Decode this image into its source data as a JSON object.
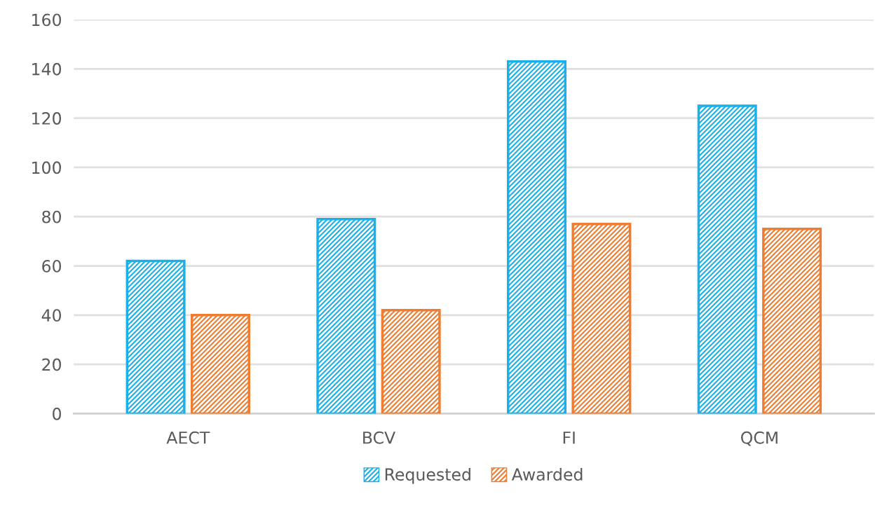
{
  "chart_data": {
    "type": "bar",
    "categories": [
      "AECT",
      "BCV",
      "FI",
      "QCM"
    ],
    "series": [
      {
        "name": "Requested",
        "color": "#1ab0ea",
        "values": [
          62,
          79,
          143,
          125
        ]
      },
      {
        "name": "Awarded",
        "color": "#ed7d31",
        "values": [
          40,
          42,
          77,
          75
        ]
      }
    ],
    "ylim": [
      0,
      160
    ],
    "yticks": [
      0,
      20,
      40,
      60,
      80,
      100,
      120,
      140,
      160
    ],
    "grid": "y",
    "legend": "bottom"
  }
}
